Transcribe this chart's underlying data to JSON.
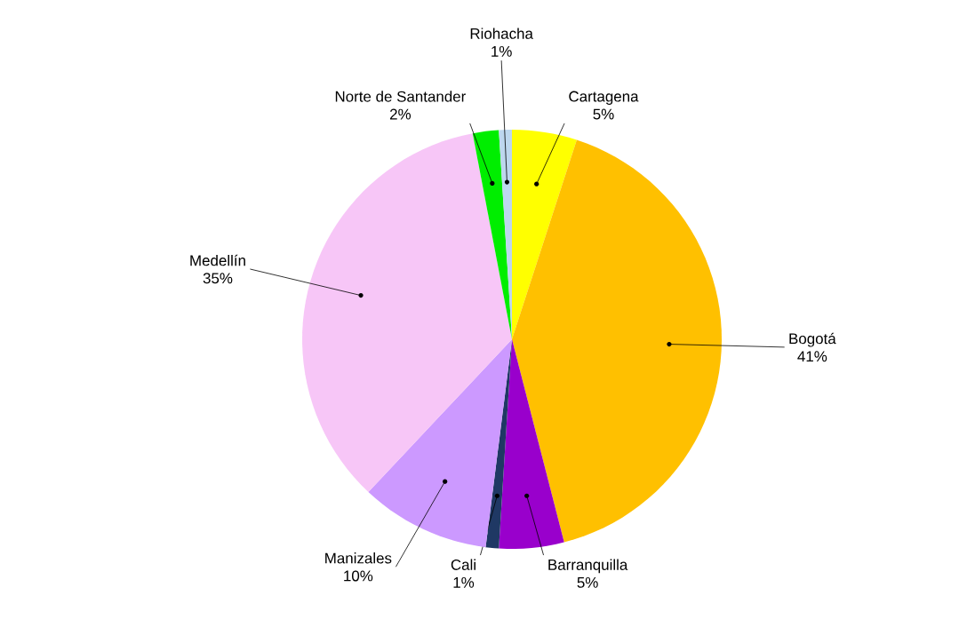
{
  "chart_data": {
    "type": "pie",
    "categories": [
      "Cartagena",
      "Bogotá",
      "Barranquilla",
      "Cali",
      "Manizales",
      "Medellín",
      "Norte de Santander",
      "Riohacha"
    ],
    "values": [
      5,
      41,
      5,
      1,
      10,
      35,
      2,
      1
    ],
    "value_labels": [
      "5%",
      "41%",
      "5%",
      "1%",
      "10%",
      "35%",
      "2%",
      "1%"
    ],
    "colors": [
      "#ffff00",
      "#ffc000",
      "#9900cc",
      "#1f3864",
      "#cc99ff",
      "#f7c6f7",
      "#00ee00",
      "#bdd7ee"
    ]
  }
}
